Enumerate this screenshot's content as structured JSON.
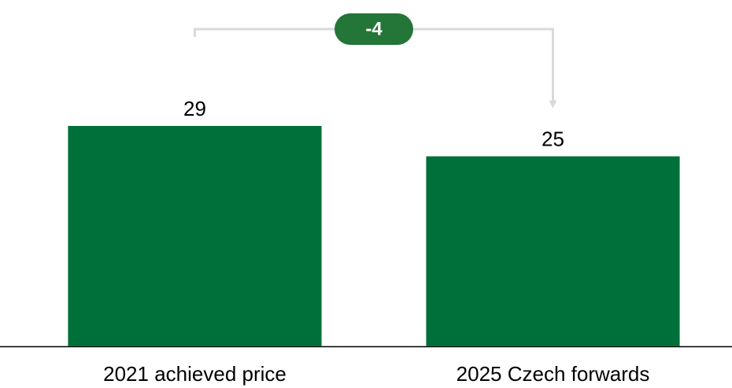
{
  "chart_data": {
    "type": "bar",
    "categories": [
      "2021 achieved price",
      "2025 Czech forwards"
    ],
    "values": [
      29,
      25
    ],
    "color": "#00703a",
    "ylim": [
      0,
      45
    ],
    "annotations": [
      {
        "text": "-4",
        "color": "#247538"
      }
    ]
  }
}
